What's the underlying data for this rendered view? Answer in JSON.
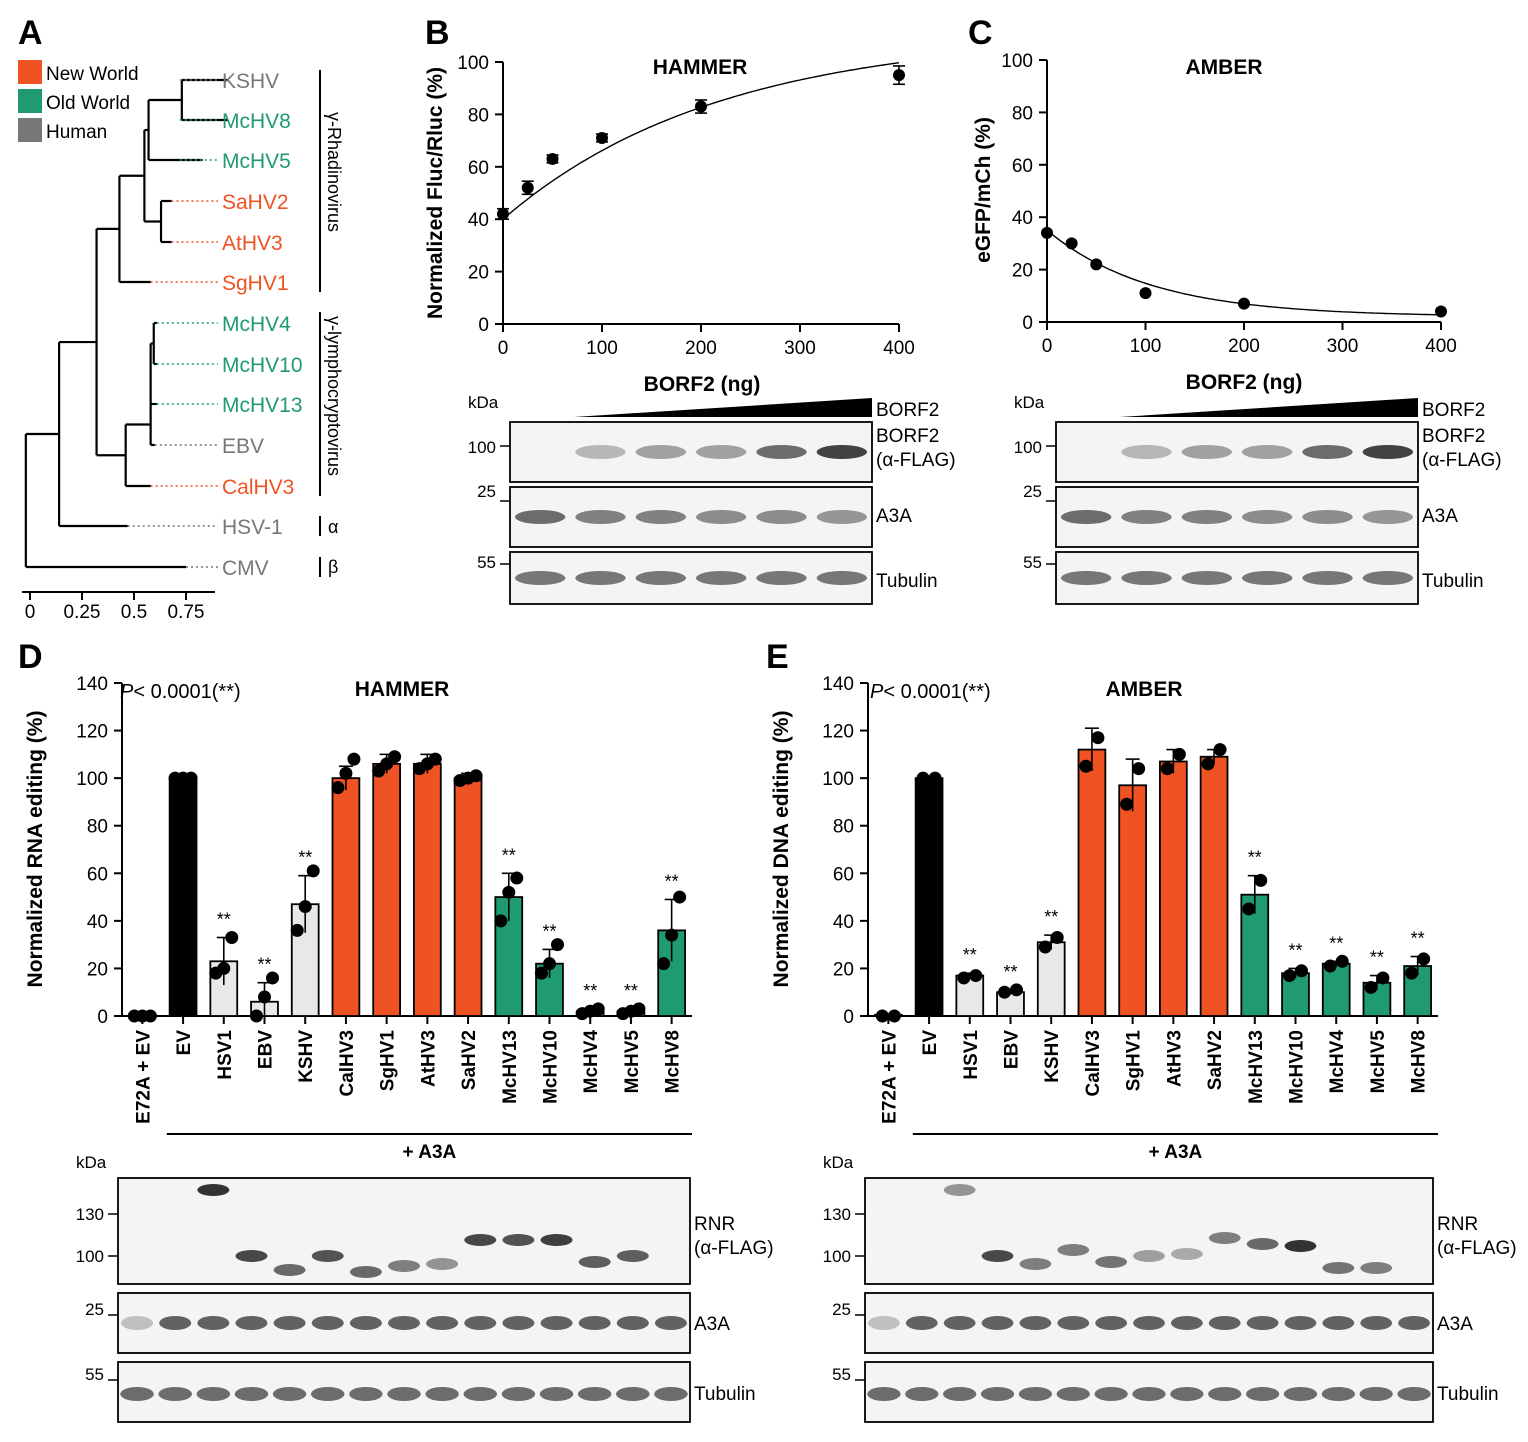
{
  "colors": {
    "new_world": "#ef5223",
    "old_world": "#1f9a72",
    "human": "#777777",
    "black": "#000000",
    "light": "#e8e8e8"
  },
  "panels": {
    "A": "A",
    "B": "B",
    "C": "C",
    "D": "D",
    "E": "E"
  },
  "legend": [
    {
      "label": "New World",
      "color": "#ef5223"
    },
    {
      "label": "Old World",
      "color": "#1f9a72"
    },
    {
      "label": "Human",
      "color": "#777777"
    }
  ],
  "tree": {
    "taxa": [
      {
        "name": "KSHV",
        "group": "human",
        "x": 0.72
      },
      {
        "name": "McHV8",
        "group": "old_world",
        "x": 0.72
      },
      {
        "name": "McHV5",
        "group": "old_world",
        "x": 0.72
      },
      {
        "name": "SaHV2",
        "group": "new_world",
        "x": 0.68
      },
      {
        "name": "AtHV3",
        "group": "new_world",
        "x": 0.68
      },
      {
        "name": "SgHV1",
        "group": "new_world",
        "x": 0.58
      },
      {
        "name": "McHV4",
        "group": "old_world",
        "x": 0.61
      },
      {
        "name": "McHV10",
        "group": "old_world",
        "x": 0.61
      },
      {
        "name": "McHV13",
        "group": "old_world",
        "x": 0.61
      },
      {
        "name": "EBV",
        "group": "human",
        "x": 0.6
      },
      {
        "name": "CalHV3",
        "group": "new_world",
        "x": 0.58
      },
      {
        "name": "HSV-1",
        "group": "human",
        "x": 0.47
      },
      {
        "name": "CMV",
        "group": "human",
        "x": 0.75
      }
    ],
    "clades": [
      "γ-Rhadinovirus",
      "γ-lymphocryptovirus",
      "α",
      "β"
    ],
    "axis_ticks": [
      "0",
      "0.25",
      "0.5",
      "0.75"
    ]
  },
  "chart_data": [
    {
      "panel": "B",
      "type": "scatter",
      "title": "HAMMER",
      "xlabel": "BORF2 (ng)",
      "ylabel": "Normalized Fluc/Rluc (%)",
      "xlim": [
        0,
        400
      ],
      "ylim": [
        0,
        100
      ],
      "xticks": [
        0,
        100,
        200,
        300,
        400
      ],
      "yticks": [
        0,
        20,
        40,
        60,
        80,
        100
      ],
      "x": [
        0,
        25,
        50,
        100,
        200,
        400
      ],
      "y": [
        42,
        52,
        63,
        71,
        83,
        95
      ],
      "err": [
        2,
        2.5,
        1.5,
        1.5,
        2.5,
        3.5
      ],
      "fit": {
        "y0": 40,
        "span": 71,
        "k": 0.0046
      }
    },
    {
      "panel": "C",
      "type": "scatter",
      "title": "AMBER",
      "xlabel": "BORF2 (ng)",
      "ylabel": "eGFP/mCh (%)",
      "xlim": [
        0,
        400
      ],
      "ylim": [
        0,
        100
      ],
      "xticks": [
        0,
        100,
        200,
        300,
        400
      ],
      "yticks": [
        0,
        20,
        40,
        60,
        80,
        100
      ],
      "x": [
        0,
        25,
        50,
        100,
        200,
        400
      ],
      "y": [
        34,
        30,
        22,
        11,
        7,
        4
      ],
      "err": [
        0,
        0,
        0,
        0,
        0,
        0
      ],
      "fit": {
        "y0": 35,
        "span": 35,
        "k": 0.0095
      }
    },
    {
      "panel": "D",
      "type": "bar",
      "title": "HAMMER",
      "ylabel": "Normalized RNA editing (%)",
      "annotation": "< 0.0001(**)",
      "annotation_italic": "P",
      "ylim": [
        0,
        140
      ],
      "yticks": [
        0,
        20,
        40,
        60,
        80,
        100,
        120,
        140
      ],
      "categories": [
        "E72A + EV",
        "EV",
        "HSV1",
        "EBV",
        "KSHV",
        "CalHV3",
        "SgHV1",
        "AtHV3",
        "SaHV2",
        "McHV13",
        "McHV10",
        "McHV4",
        "McHV5",
        "McHV8"
      ],
      "groups": [
        "black",
        "black",
        "light",
        "light",
        "light",
        "new_world",
        "new_world",
        "new_world",
        "new_world",
        "old_world",
        "old_world",
        "old_world",
        "old_world",
        "old_world"
      ],
      "values": [
        0.5,
        100,
        23,
        6,
        47,
        100,
        106,
        106,
        100,
        50,
        22,
        2,
        2,
        36
      ],
      "err": [
        0,
        0,
        10,
        8,
        12,
        5,
        4,
        4,
        2,
        10,
        6,
        1,
        1,
        13
      ],
      "points": [
        [
          0,
          0,
          0
        ],
        [
          100,
          100,
          100
        ],
        [
          18,
          20,
          33
        ],
        [
          0,
          8,
          16
        ],
        [
          36,
          46,
          61
        ],
        [
          96,
          102,
          108
        ],
        [
          103,
          106,
          109
        ],
        [
          104,
          106,
          108
        ],
        [
          99,
          100,
          101
        ],
        [
          40,
          52,
          58
        ],
        [
          18,
          22,
          30
        ],
        [
          1,
          2,
          3
        ],
        [
          1,
          2,
          3
        ],
        [
          22,
          34,
          50
        ]
      ],
      "signif": [
        "",
        "",
        "**",
        "**",
        "**",
        "",
        "",
        "",
        "",
        "**",
        "**",
        "**",
        "**",
        "**"
      ],
      "bracket_label": "+ A3A"
    },
    {
      "panel": "E",
      "type": "bar",
      "title": "AMBER",
      "ylabel": "Normalized DNA editing (%)",
      "annotation": "< 0.0001(**)",
      "annotation_italic": "P",
      "ylim": [
        0,
        140
      ],
      "yticks": [
        0,
        20,
        40,
        60,
        80,
        100,
        120,
        140
      ],
      "categories": [
        "E72A + EV",
        "EV",
        "HSV1",
        "EBV",
        "KSHV",
        "CalHV3",
        "SgHV1",
        "AtHV3",
        "SaHV2",
        "McHV13",
        "McHV10",
        "McHV4",
        "McHV5",
        "McHV8"
      ],
      "groups": [
        "black",
        "black",
        "light",
        "light",
        "light",
        "new_world",
        "new_world",
        "new_world",
        "new_world",
        "old_world",
        "old_world",
        "old_world",
        "old_world",
        "old_world"
      ],
      "values": [
        0.5,
        100,
        17,
        10,
        31,
        112,
        97,
        107,
        109,
        51,
        18,
        22,
        14,
        21
      ],
      "err": [
        0,
        0,
        1,
        1,
        3,
        9,
        11,
        5,
        3,
        8,
        2,
        1,
        3,
        4
      ],
      "points": [
        [
          0,
          0
        ],
        [
          100,
          100
        ],
        [
          16,
          17
        ],
        [
          10,
          11
        ],
        [
          29,
          33
        ],
        [
          105,
          117
        ],
        [
          89,
          104
        ],
        [
          104,
          110
        ],
        [
          106,
          112
        ],
        [
          45,
          57
        ],
        [
          17,
          19
        ],
        [
          21,
          23
        ],
        [
          12,
          16
        ],
        [
          18,
          24
        ]
      ],
      "signif": [
        "",
        "",
        "**",
        "**",
        "**",
        "",
        "",
        "",
        "",
        "**",
        "**",
        "**",
        "**",
        "**"
      ],
      "bracket_label": "+ A3A"
    }
  ],
  "blots_bc": {
    "kda": "kDa",
    "markers": [
      "100",
      "25",
      "55"
    ],
    "wedge_label": "BORF2",
    "rows": [
      {
        "label": "BORF2",
        "sublabel": "(α-FLAG)"
      },
      {
        "label": "A3A",
        "sublabel": ""
      },
      {
        "label": "Tubulin",
        "sublabel": ""
      }
    ]
  },
  "blots_de": {
    "kda": "kDa",
    "markers": [
      "130",
      "100",
      "25",
      "55"
    ],
    "rows": [
      {
        "label": "RNR",
        "sublabel": "(α-FLAG)"
      },
      {
        "label": "A3A",
        "sublabel": ""
      },
      {
        "label": "Tubulin",
        "sublabel": ""
      }
    ]
  }
}
